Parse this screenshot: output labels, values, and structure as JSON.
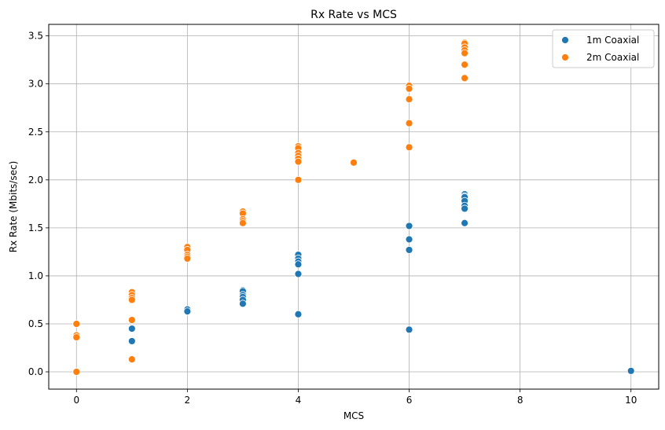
{
  "chart_data": {
    "type": "scatter",
    "title": "Rx Rate vs MCS",
    "xlabel": "MCS",
    "ylabel": "Rx Rate (Mbits/sec)",
    "xlim": [
      -0.5,
      10.5
    ],
    "ylim": [
      -0.18,
      3.62
    ],
    "xticks": [
      0,
      2,
      4,
      6,
      8,
      10
    ],
    "yticks": [
      0.0,
      0.5,
      1.0,
      1.5,
      2.0,
      2.5,
      3.0,
      3.5
    ],
    "grid": true,
    "legend_position": "top-right",
    "series": [
      {
        "name": "1m Coaxial",
        "color": "#1f77b4",
        "points": [
          [
            0,
            0.0
          ],
          [
            1,
            0.45
          ],
          [
            1,
            0.32
          ],
          [
            2,
            0.65
          ],
          [
            2,
            0.63
          ],
          [
            3,
            0.85
          ],
          [
            3,
            0.84
          ],
          [
            3,
            0.8
          ],
          [
            3,
            0.78
          ],
          [
            3,
            0.75
          ],
          [
            3,
            0.71
          ],
          [
            4,
            1.22
          ],
          [
            4,
            1.18
          ],
          [
            4,
            1.15
          ],
          [
            4,
            1.12
          ],
          [
            4,
            1.02
          ],
          [
            4,
            0.6
          ],
          [
            6,
            1.52
          ],
          [
            6,
            1.38
          ],
          [
            6,
            1.27
          ],
          [
            6,
            0.44
          ],
          [
            7,
            1.85
          ],
          [
            7,
            1.83
          ],
          [
            7,
            1.82
          ],
          [
            7,
            1.78
          ],
          [
            7,
            1.73
          ],
          [
            7,
            1.7
          ],
          [
            7,
            1.55
          ],
          [
            10,
            0.01
          ]
        ]
      },
      {
        "name": "2m Coaxial",
        "color": "#ff7f0e",
        "points": [
          [
            0,
            0.5
          ],
          [
            0,
            0.38
          ],
          [
            0,
            0.36
          ],
          [
            0,
            0.0
          ],
          [
            1,
            0.83
          ],
          [
            1,
            0.8
          ],
          [
            1,
            0.77
          ],
          [
            1,
            0.75
          ],
          [
            1,
            0.54
          ],
          [
            1,
            0.13
          ],
          [
            2,
            1.3
          ],
          [
            2,
            1.27
          ],
          [
            2,
            1.22
          ],
          [
            2,
            1.2
          ],
          [
            2,
            1.18
          ],
          [
            3,
            1.67
          ],
          [
            3,
            1.65
          ],
          [
            3,
            1.59
          ],
          [
            3,
            1.57
          ],
          [
            3,
            1.55
          ],
          [
            4,
            2.35
          ],
          [
            4,
            2.33
          ],
          [
            4,
            2.28
          ],
          [
            4,
            2.25
          ],
          [
            4,
            2.22
          ],
          [
            4,
            2.19
          ],
          [
            4,
            2.0
          ],
          [
            5,
            2.18
          ],
          [
            6,
            2.98
          ],
          [
            6,
            2.95
          ],
          [
            6,
            2.84
          ],
          [
            6,
            2.59
          ],
          [
            6,
            2.34
          ],
          [
            7,
            3.43
          ],
          [
            7,
            3.42
          ],
          [
            7,
            3.38
          ],
          [
            7,
            3.35
          ],
          [
            7,
            3.32
          ],
          [
            7,
            3.2
          ],
          [
            7,
            3.06
          ]
        ]
      }
    ]
  }
}
